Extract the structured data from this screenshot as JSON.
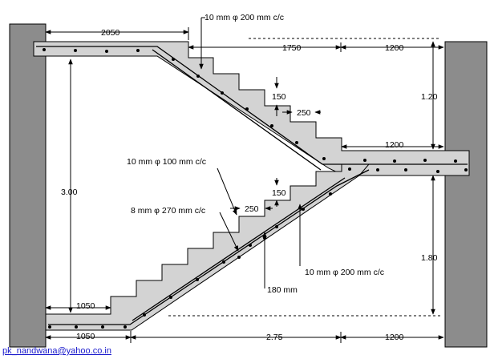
{
  "labels": {
    "top_landing_width": "2050",
    "top_span": "1750",
    "top_right_width": "1200",
    "rebar_main_top": "10  mm φ   200   mm c/c",
    "height_upper": "1.20",
    "riser_upper": "150",
    "tread_upper": "250",
    "mid_landing_width": "1200",
    "rebar_main_lower": "10  mm φ   100   mm c/c",
    "rebar_dist": "8  mm φ   270   mm c/c",
    "riser_lower": "150",
    "tread_lower": "250",
    "total_height": "3.00",
    "height_lower": "1.80",
    "rebar_bottom": "10  mm φ   200   mm c/c",
    "waist_thickness": "180     mm",
    "bottom_landing_width": "1050",
    "bottom_left_width": "1050",
    "bottom_span": "2.75",
    "bottom_right_width": "1200"
  },
  "footer": "pk_nandwana@yahoo.co.in",
  "colors": {
    "wall": "#8c8c8c",
    "concrete": "#d3d3d3",
    "line": "#000000",
    "footer_link": "#1a1acc"
  }
}
